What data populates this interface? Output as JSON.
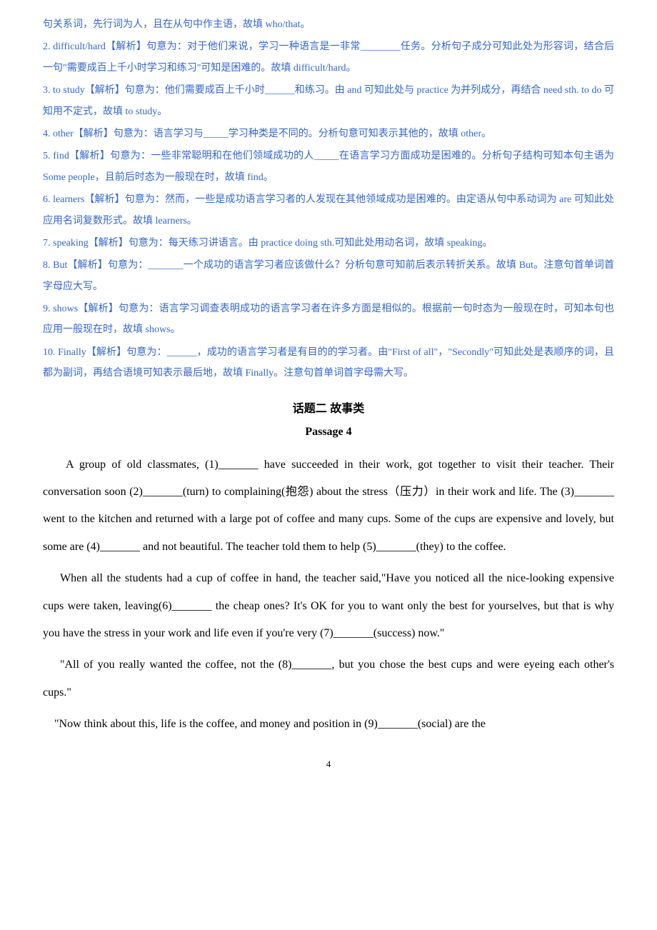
{
  "answers": {
    "a1": "句关系词，先行词为人，且在从句中作主语，故填 who/that。",
    "a2": "2. difficult/hard【解析】句意为：对于他们来说，学习一种语言是一非常________任务。分析句子成分可知此处为形容词，结合后一句\"需要成百上千小时学习和练习\"可知是困难的。故填 difficult/hard。",
    "a3": "3. to study【解析】句意为：他们需要成百上千小时______和练习。由 and 可知此处与 practice 为并列成分，再结合 need sth. to do 可知用不定式，故填 to study。",
    "a4": "4. other【解析】句意为：语言学习与_____学习种类是不同的。分析句意可知表示其他的，故填 other。",
    "a5": "5. find【解析】句意为：一些非常聪明和在他们领域成功的人_____在语言学习方面成功是困难的。分析句子结构可知本句主语为 Some people，且前后时态为一般现在时，故填 find。",
    "a6": "6. learners【解析】句意为：然而，一些是成功语言学习者的人发现在其他领域成功是困难的。由定语从句中系动词为 are 可知此处应用名词复数形式。故填 learners。",
    "a7": "7. speaking【解析】句意为：每天练习讲语言。由 practice doing sth.可知此处用动名词，故填 speaking。",
    "a8": "8. But【解析】句意为：_______一个成功的语言学习者应该做什么？分析句意可知前后表示转折关系。故填 But。注意句首单词首字母应大写。",
    "a9": "9. shows【解析】句意为：语言学习调查表明成功的语言学习者在许多方面是相似的。根据前一句时态为一般现在时，可知本句也应用一般现在时，故填 shows。",
    "a10": "10. Finally【解析】句意为：______，成功的语言学习者是有目的的学习者。由\"First of all\"，\"Secondly\"可知此处是表顺序的词，且都为副词，再结合语境可知表示最后地，故填 Finally。注意句首单词首字母需大写。"
  },
  "section_title": "话题二  故事类",
  "passage_title": "Passage 4",
  "passage": {
    "p1": "A group of old classmates, (1)_______ have succeeded in their work, got together to visit their teacher. Their conversation soon (2)_______(turn) to complaining(抱怨) about the stress（压力）in their work and life. The (3)_______ went to the kitchen and returned with a large pot of coffee and many cups. Some of the cups are expensive and lovely, but some are (4)_______ and not beautiful. The teacher told them to help (5)_______(they) to the coffee.",
    "p2": "When all the students had a cup of coffee in hand, the teacher said,\"Have you noticed all the nice-looking expensive cups were taken, leaving(6)_______ the cheap ones? It's OK for you to want only the best for yourselves, but that is why you have the stress in your work and life even if you're very (7)_______(success) now.\"",
    "p3": "\"All of you really wanted the coffee, not the (8)_______, but you chose the best cups and were eyeing each other's cups.\"",
    "p4": "\"Now think about this, life is the coffee, and money and position in (9)_______(social) are the"
  },
  "page_number": "4",
  "colors": {
    "answer_text": "#3366cc",
    "body_text": "#000000",
    "background": "#ffffff"
  }
}
